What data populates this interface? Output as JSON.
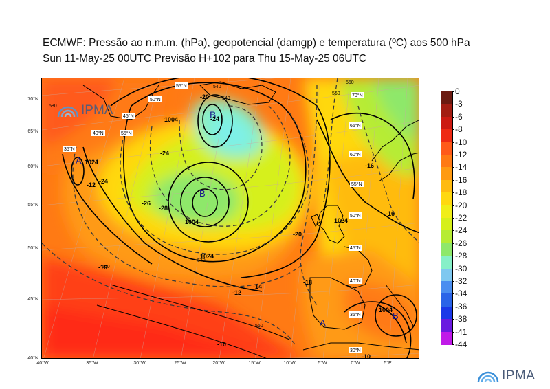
{
  "title_line1": "ECMWF:  Pressão ao n.m.m. (hPa), geopotencial (damgp) e temperatura (ºC) aos 500 hPa",
  "title_line2": "Sun 11-May-25 00UTC Previsão H+102 para Thu 15-May-25 06UTC",
  "brand": "IPMA",
  "latitude_labels": [
    "70°N",
    "65°N",
    "60°N",
    "55°N",
    "50°N",
    "45°N",
    "40°N"
  ],
  "longitude_labels": [
    "40°W",
    "35°W",
    "30°W",
    "25°W",
    "20°W",
    "15°W",
    "10°W",
    "5°W",
    "0°W",
    "5°E"
  ],
  "colorbar": {
    "labels": [
      "0",
      "-3",
      "-6",
      "-8",
      "-10",
      "-12",
      "-14",
      "-16",
      "-18",
      "-20",
      "-22",
      "-24",
      "-26",
      "-28",
      "-30",
      "-32",
      "-34",
      "-36",
      "-38",
      "-41",
      "-44"
    ],
    "colors": [
      "#6b1a10",
      "#a31d12",
      "#cc1a12",
      "#ee2a14",
      "#ff5a1a",
      "#ff7a14",
      "#ff9a12",
      "#ffbb10",
      "#ffd810",
      "#f0ee18",
      "#d6f01a",
      "#b6ec34",
      "#8ee86a",
      "#86f0c8",
      "#7ec8f0",
      "#4a8ef0",
      "#2a64e8",
      "#1a38e8",
      "#6a1ae0",
      "#c01ae8"
    ]
  },
  "pressure_centers": [
    {
      "symbol": "B",
      "role": "low"
    },
    {
      "symbol": "B",
      "role": "low"
    },
    {
      "symbol": "A",
      "role": "high"
    },
    {
      "symbol": "A",
      "role": "high"
    },
    {
      "symbol": "A",
      "role": "high"
    },
    {
      "symbol": "B",
      "role": "low"
    }
  ],
  "contour_labels": {
    "pressure": [
      "1004",
      "1004",
      "1024",
      "1024",
      "1004",
      "1024"
    ],
    "temperature": [
      "-20",
      "-24",
      "-24",
      "-28",
      "-26",
      "-24",
      "-16",
      "-12",
      "-14",
      "-12",
      "-10",
      "-20",
      "-18",
      "-16",
      "-16",
      "-10"
    ],
    "geopotential": [
      "580",
      "550",
      "540",
      "540",
      "560",
      "550",
      "570",
      "560",
      "560"
    ]
  },
  "grid_labels_in_map": [
    "55°N",
    "50°N",
    "45°N",
    "40°N",
    "35°N",
    "65°N",
    "60°N",
    "55°N",
    "50°N",
    "45°N",
    "40°N",
    "35°N",
    "30°N",
    "70°N",
    "55°N"
  ]
}
